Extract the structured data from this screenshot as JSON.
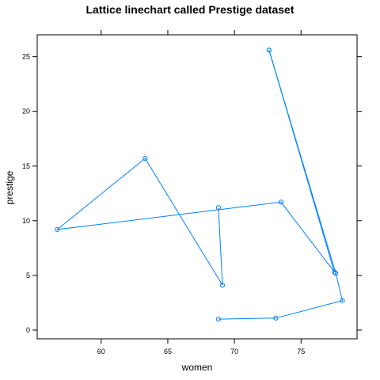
{
  "chart_data": {
    "type": "line",
    "title": "Lattice linechart called Prestige dataset",
    "xlabel": "women",
    "ylabel": "prestige",
    "xlim": [
      55.2,
      79.2
    ],
    "ylim": [
      -0.8,
      27.0
    ],
    "xticks": [
      60,
      65,
      70,
      75
    ],
    "yticks": [
      0,
      5,
      10,
      15,
      20,
      25
    ],
    "grid": false,
    "legend": "none",
    "series_color": "#0080ff",
    "series": [
      {
        "x": [
          72.6,
          77.6,
          78.1,
          73.1,
          68.8
        ],
        "y": [
          25.6,
          5.2,
          2.7,
          1.1,
          1.0
        ]
      },
      {
        "x": [
          68.8,
          69.1,
          63.3,
          56.7,
          73.5,
          77.5,
          72.6
        ],
        "y": [
          11.2,
          4.1,
          15.7,
          9.2,
          11.7,
          5.3,
          25.6
        ]
      }
    ]
  }
}
